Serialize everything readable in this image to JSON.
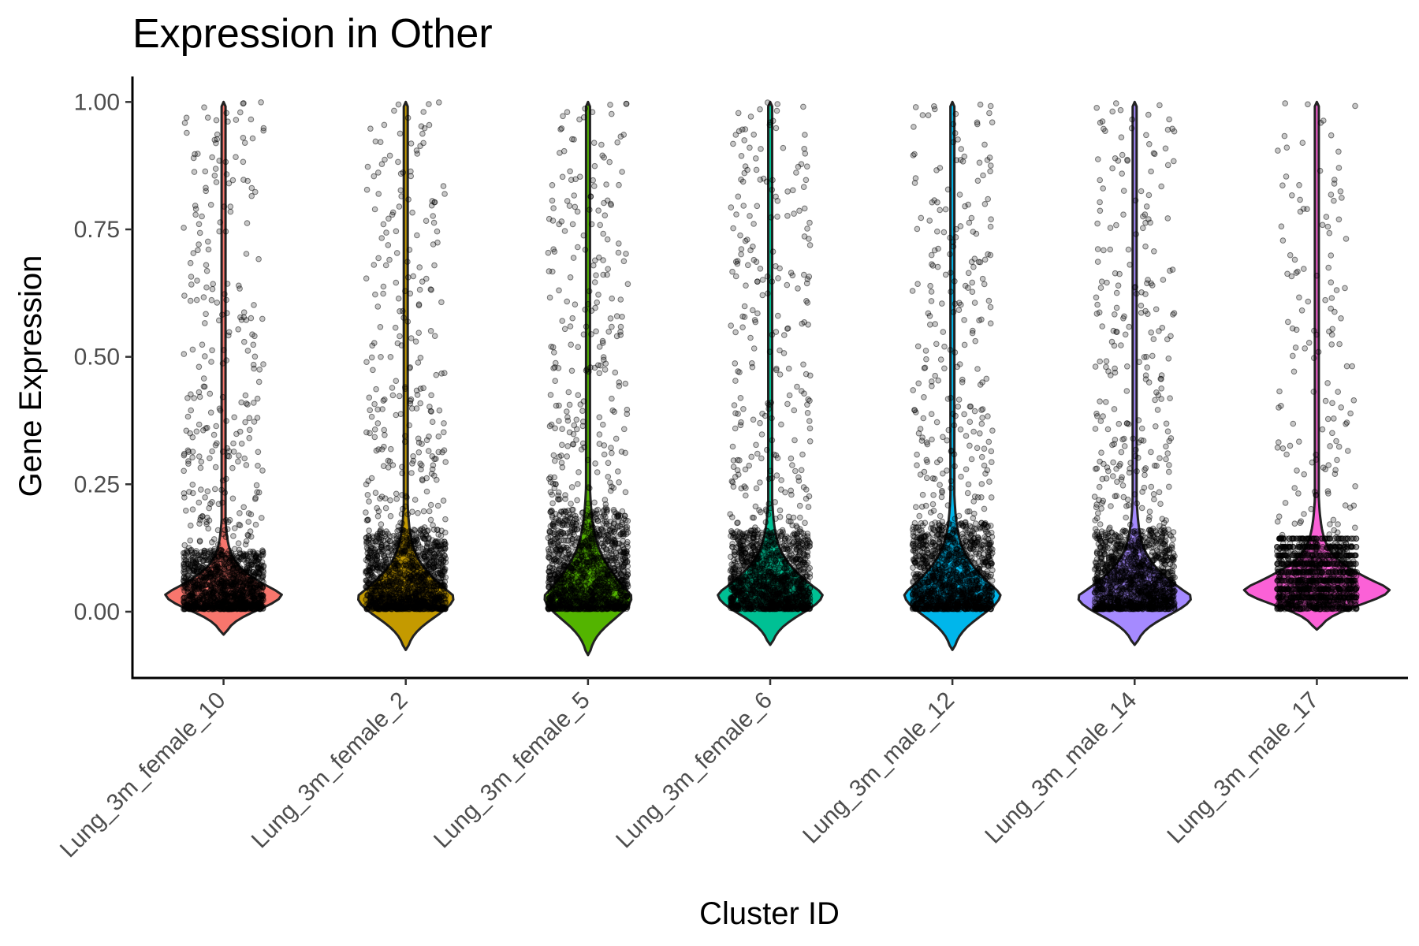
{
  "chart_data": {
    "type": "violin",
    "title": "Expression in Other",
    "xlabel": "Cluster ID",
    "ylabel": "Gene Expression",
    "ylim": [
      -0.13,
      1.05
    ],
    "yticks": [
      0.0,
      0.25,
      0.5,
      0.75,
      1.0
    ],
    "ytick_labels": [
      "0.00",
      "0.25",
      "0.50",
      "0.75",
      "1.00"
    ],
    "grid": false,
    "legend": "none",
    "categories": [
      "Lung_3m_female_10",
      "Lung_3m_female_2",
      "Lung_3m_female_5",
      "Lung_3m_female_6",
      "Lung_3m_male_12",
      "Lung_3m_male_14",
      "Lung_3m_male_17"
    ],
    "colors": [
      "#F8766D",
      "#C49A00",
      "#53B400",
      "#00C094",
      "#00B6EB",
      "#A58AFF",
      "#FB61D7"
    ],
    "series": [
      {
        "category": "Lung_3m_female_10",
        "min": -0.045,
        "max": 1.0,
        "mode": 0.035,
        "peak_half_width_frac": 0.8,
        "upper_spread": 0.09
      },
      {
        "category": "Lung_3m_female_2",
        "min": -0.075,
        "max": 1.0,
        "mode": 0.03,
        "peak_half_width_frac": 0.66,
        "upper_spread": 0.12
      },
      {
        "category": "Lung_3m_female_5",
        "min": -0.085,
        "max": 1.0,
        "mode": 0.03,
        "peak_half_width_frac": 0.6,
        "upper_spread": 0.15
      },
      {
        "category": "Lung_3m_female_6",
        "min": -0.065,
        "max": 1.0,
        "mode": 0.035,
        "peak_half_width_frac": 0.72,
        "upper_spread": 0.12
      },
      {
        "category": "Lung_3m_male_12",
        "min": -0.075,
        "max": 1.0,
        "mode": 0.035,
        "peak_half_width_frac": 0.66,
        "upper_spread": 0.13
      },
      {
        "category": "Lung_3m_male_14",
        "min": -0.065,
        "max": 1.0,
        "mode": 0.03,
        "peak_half_width_frac": 0.78,
        "upper_spread": 0.12
      },
      {
        "category": "Lung_3m_male_17",
        "min": -0.035,
        "max": 1.0,
        "mode": 0.045,
        "peak_half_width_frac": 1.0,
        "upper_spread": 0.1
      }
    ]
  }
}
